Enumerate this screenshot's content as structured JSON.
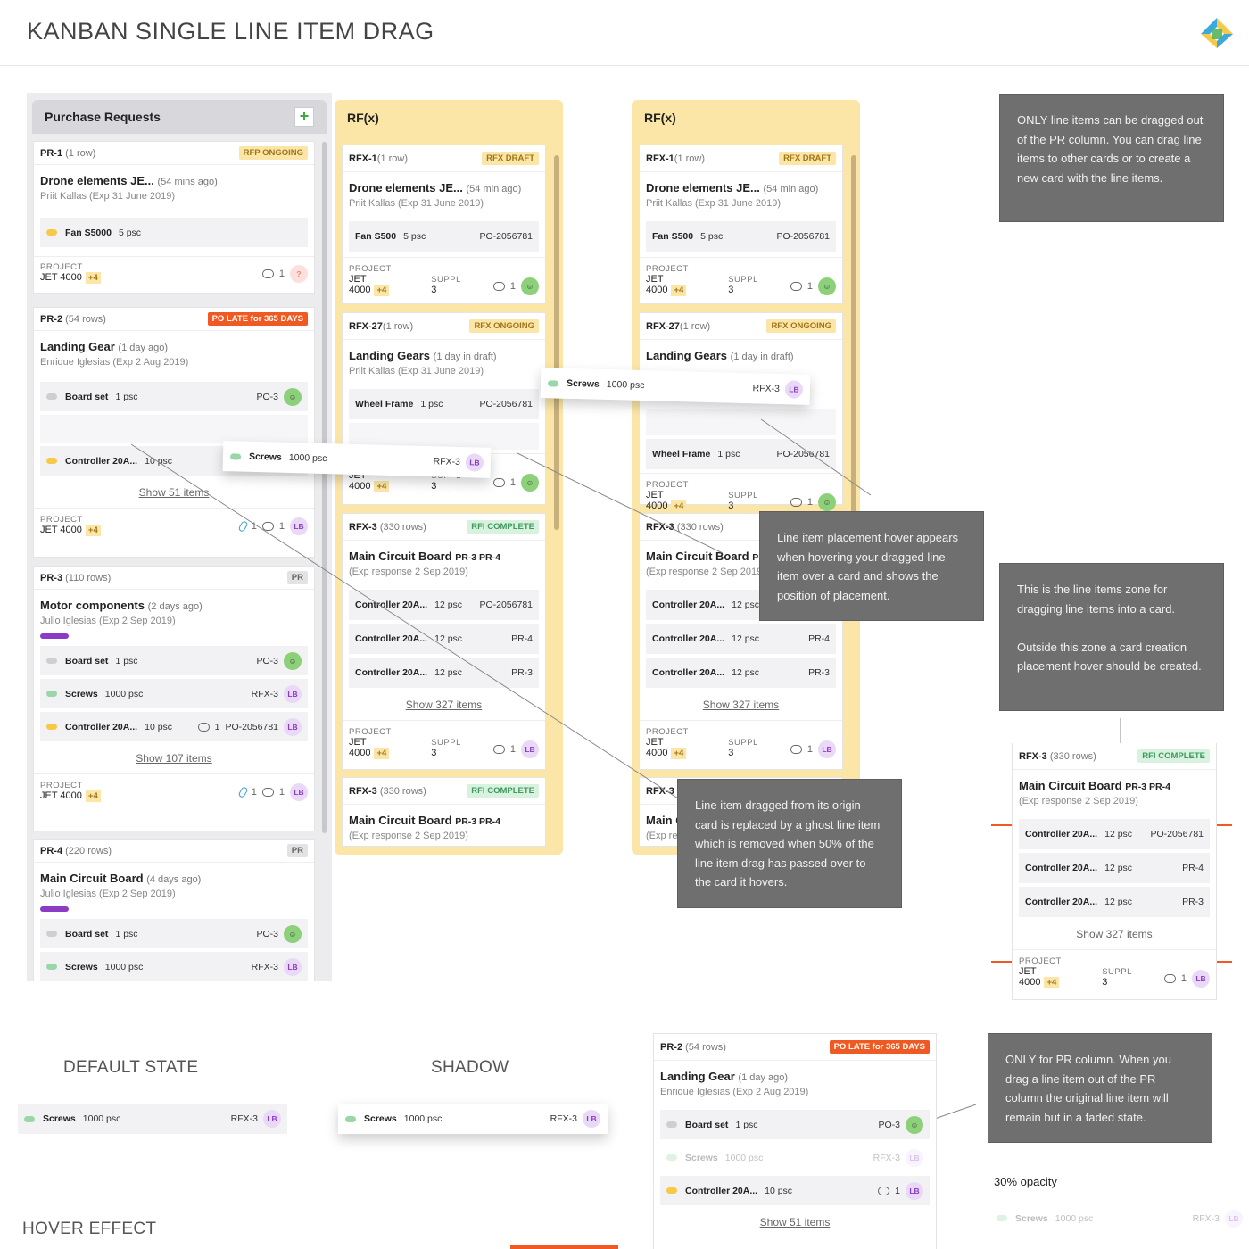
{
  "page": {
    "title": "KANBAN SINGLE LINE ITEM DRAG"
  },
  "pr_column": {
    "title": "Purchase Requests",
    "add": "+",
    "cards": [
      {
        "id": "PR-1",
        "rows": "(1 row)",
        "badge": "RFP ONGOING",
        "title": "Drone elements JE...",
        "ago": "(54 mins ago)",
        "meta": "Priit Kallas (Exp 31 June 2019)",
        "items": [
          {
            "name": "Fan S5000",
            "qty": "5 psc"
          }
        ],
        "project_label": "PROJECT",
        "project": "JET 4000",
        "plus": "+4",
        "comments": "1",
        "avatar": "?"
      },
      {
        "id": "PR-2",
        "rows": "(54 rows)",
        "badge": "PO LATE for 365 DAYS",
        "title": "Landing Gear",
        "ago": "(1 day ago)",
        "meta": "Enrique Iglesias (Exp 2 Aug 2019)",
        "items": [
          {
            "name": "Board set",
            "qty": "1 psc",
            "ref": "PO-3"
          },
          {
            "name": "Controller 20A...",
            "qty": "10 psc",
            "ref": "1"
          }
        ],
        "show": "Show 51 items",
        "project_label": "PROJECT",
        "project": "JET 4000",
        "plus": "+4",
        "attach": "1",
        "comments": "1",
        "avatar": "LB"
      },
      {
        "id": "PR-3",
        "rows": "(110 rows)",
        "badge": "PR",
        "title": "Motor components",
        "ago": "(2 days ago)",
        "meta": "Julio Iglesias (Exp 2 Sep 2019)",
        "items": [
          {
            "name": "Board set",
            "qty": "1 psc",
            "ref": "PO-3"
          },
          {
            "name": "Screws",
            "qty": "1000 psc",
            "ref": "RFX-3",
            "av": "LB"
          },
          {
            "name": "Controller 20A...",
            "qty": "10 psc",
            "cm": "1",
            "ref": "PO-2056781",
            "av": "LB"
          }
        ],
        "show": "Show 107 items",
        "project_label": "PROJECT",
        "project": "JET 4000",
        "plus": "+4",
        "attach": "1",
        "comments": "1",
        "avatar": "LB"
      },
      {
        "id": "PR-4",
        "rows": "(220 rows)",
        "badge": "PR",
        "title": "Main Circuit Board",
        "ago": "(4 days ago)",
        "meta": "Julio Iglesias (Exp 2 Sep 2019)",
        "items": [
          {
            "name": "Board set",
            "qty": "1 psc",
            "ref": "PO-3"
          },
          {
            "name": "Screws",
            "qty": "1000 psc",
            "ref": "RFX-3",
            "av": "LB"
          }
        ]
      }
    ]
  },
  "rfx1": {
    "title": "RF(x)"
  },
  "rfx2": {
    "title": "RF(x)"
  },
  "rfx_cards": {
    "c1": {
      "id": "RFX-1",
      "rows": "(1 row)",
      "badge": "RFX DRAFT",
      "title": "Drone elements JE...",
      "ago": "(54 min ago)",
      "meta": "Priit Kallas (Exp 31 June 2019)",
      "item": {
        "name": "Fan S500",
        "qty": "5 psc",
        "ref": "PO-2056781"
      },
      "project_label": "PROJECT",
      "suppl_label": "SUPPL",
      "project": "JET 4000",
      "plus": "+4",
      "suppl": "3",
      "comments": "1"
    },
    "c2": {
      "id": "RFX-27",
      "rows": "(1 row)",
      "badge": "RFX ONGOING",
      "title": "Landing Gears",
      "ago": "(1 day in draft)",
      "meta": "Priit Kallas (Exp 31 June 2019)",
      "item": {
        "name": "Wheel Frame",
        "qty": "1 psc",
        "ref": "PO-2056781"
      },
      "project_label": "PROJECT",
      "suppl_label": "SUPPL",
      "project": "JET 4000",
      "plus": "+4",
      "suppl": "3",
      "comments": "1"
    },
    "c3": {
      "id": "RFX-3",
      "rows": "(330 rows)",
      "badge": "RFI COMPLETE",
      "title": "Main Circuit Board",
      "tag": "PR-3 PR-4",
      "meta": "(Exp response 2 Sep 2019)",
      "items": [
        {
          "name": "Controller 20A...",
          "qty": "12 psc",
          "ref": "PO-2056781"
        },
        {
          "name": "Controller 20A...",
          "qty": "12 psc",
          "ref": "PR-4"
        },
        {
          "name": "Controller 20A...",
          "qty": "12 psc",
          "ref": "PR-3"
        }
      ],
      "show": "Show 327 items",
      "project_label": "PROJECT",
      "suppl_label": "SUPPL",
      "project": "JET 4000",
      "plus": "+4",
      "suppl": "3",
      "comments": "1",
      "avatar": "LB"
    },
    "c4": {
      "id": "RFX-3",
      "rows": "(330 rows)",
      "badge": "RFI COMPLETE",
      "title": "Main Circuit Board",
      "tag": "PR-3 PR-4",
      "meta": "(Exp response 2 Sep 2019)"
    }
  },
  "drag": {
    "name": "Screws",
    "qty": "1000 psc",
    "ref": "RFX-3",
    "avatar": "LB"
  },
  "notes": {
    "n1": "ONLY line items can be dragged out of the PR column. You can drag line items to other cards or to create a new card with the line items.",
    "n2": "Line item placement hover appears when hovering your dragged line item over a card and shows the position of placement.",
    "n3": "This is the line items zone for dragging line items into a card.\n\nOutside this zone a card creation placement hover should be created.",
    "n4": "Line item dragged from its origin card is replaced by a ghost line item which is removed when 50% of the line item drag has passed over to the card it hovers.",
    "n5": "ONLY for PR column. When you drag a line item out of the PR column the original line item will remain but in a faded state."
  },
  "labels": {
    "default": "DEFAULT STATE",
    "shadow": "SHADOW",
    "hover": "HOVER EFFECT",
    "opacity": "30% opacity"
  },
  "colors": {
    "accent_orange": "#f05a22",
    "rfx_column": "#fbe6a7",
    "note_bg": "#6f6f6f",
    "purple": "#8b3bc5"
  }
}
